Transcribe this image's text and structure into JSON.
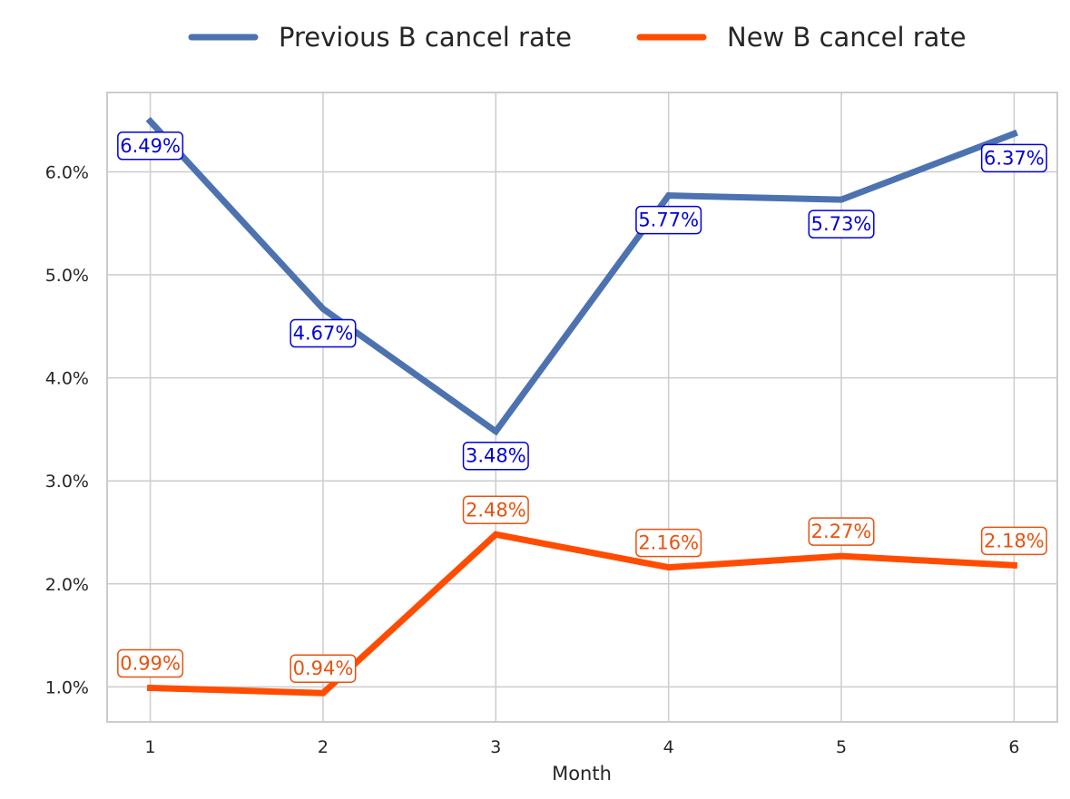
{
  "chart_data": {
    "type": "line",
    "x": [
      1,
      2,
      3,
      4,
      5,
      6
    ],
    "xlabel": "Month",
    "ylabel": "",
    "ylim": [
      0.0066,
      0.0677
    ],
    "xlim": [
      0.75,
      6.25
    ],
    "yticks": [
      0.01,
      0.02,
      0.03,
      0.04,
      0.05,
      0.06
    ],
    "ytick_labels": [
      "1.0%",
      "2.0%",
      "3.0%",
      "4.0%",
      "5.0%",
      "6.0%"
    ],
    "grid": true,
    "legend_position": "top-center",
    "series": [
      {
        "name": "Previous B cancel rate",
        "color": "#4c72b0",
        "label_color": "#0000dd",
        "values": [
          0.0649,
          0.0467,
          0.0348,
          0.0577,
          0.0573,
          0.0637
        ],
        "labels": [
          "6.49%",
          "4.67%",
          "3.48%",
          "5.77%",
          "5.73%",
          "6.37%"
        ],
        "label_placement": "below"
      },
      {
        "name": "New B cancel rate",
        "color": "#ff4c00",
        "label_color": "#e8520e",
        "values": [
          0.0099,
          0.0094,
          0.0248,
          0.0216,
          0.0227,
          0.0218
        ],
        "labels": [
          "0.99%",
          "0.94%",
          "2.48%",
          "2.16%",
          "2.27%",
          "2.18%"
        ],
        "label_placement": "above"
      }
    ]
  }
}
